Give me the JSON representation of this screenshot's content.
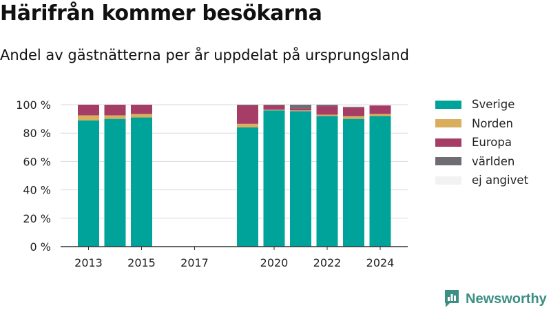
{
  "header": {
    "title": "Härifrån kommer besökarna",
    "subtitle": "Andel av gästnätterna per år uppdelat på ursprungsland"
  },
  "brand": {
    "name": "Newsworthy"
  },
  "chart_data": {
    "type": "bar",
    "stacked": true,
    "categories": [
      "2013",
      "2014",
      "2015",
      "2016",
      "2017",
      "2018",
      "2019",
      "2020",
      "2021",
      "2022",
      "2023",
      "2024"
    ],
    "x_tick_labels": [
      "2013",
      "2015",
      "2017",
      "2020",
      "2022",
      "2024"
    ],
    "y_ticks": [
      0,
      20,
      40,
      60,
      80,
      100
    ],
    "y_tick_labels": [
      "0 %",
      "20 %",
      "40 %",
      "60 %",
      "80 %",
      "100 %"
    ],
    "ylim": [
      0,
      100
    ],
    "grid": true,
    "legend_position": "right",
    "series": [
      {
        "name": "Sverige",
        "color": "#00a39a",
        "values": [
          89,
          90,
          91,
          null,
          null,
          null,
          84,
          96,
          95.5,
          92,
          90,
          92
        ]
      },
      {
        "name": "Norden",
        "color": "#d9ae5d",
        "values": [
          3.5,
          2.5,
          2.5,
          null,
          null,
          null,
          2.5,
          0.5,
          0.5,
          1,
          2,
          1.5
        ]
      },
      {
        "name": "Europa",
        "color": "#a53d66",
        "values": [
          7.5,
          7.5,
          6.5,
          null,
          null,
          null,
          13,
          3,
          1.5,
          6,
          6,
          6
        ]
      },
      {
        "name": "världen",
        "color": "#6e6e72",
        "values": [
          0,
          0,
          0,
          null,
          null,
          null,
          0.5,
          0.5,
          2.5,
          1,
          0.5,
          0
        ]
      },
      {
        "name": "ej angivet",
        "color": "#f2f2f2",
        "values": [
          0,
          0,
          0,
          null,
          null,
          null,
          0,
          0,
          0,
          0,
          1.5,
          0.5
        ]
      }
    ]
  }
}
